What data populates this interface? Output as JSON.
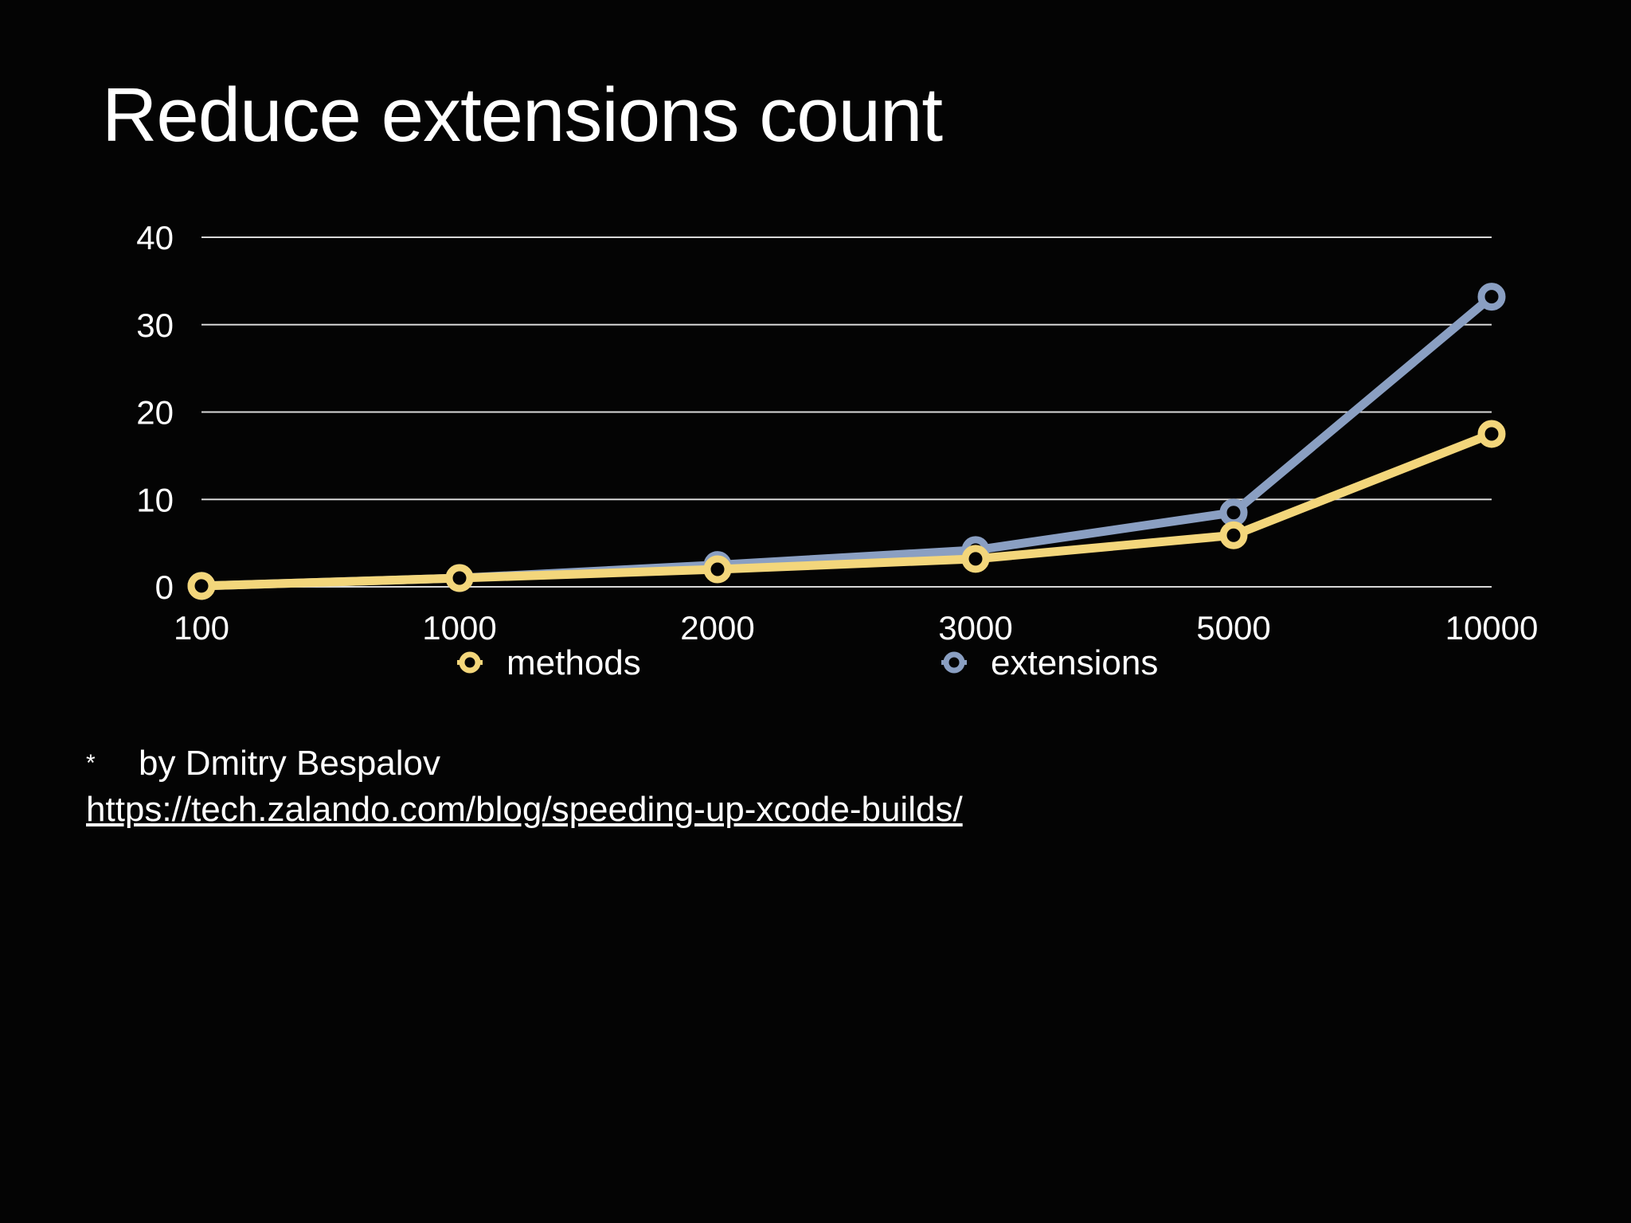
{
  "slide": {
    "title": "Reduce extensions count"
  },
  "chart_data": {
    "type": "line",
    "categories": [
      "100",
      "1000",
      "2000",
      "3000",
      "5000",
      "10000"
    ],
    "series": [
      {
        "name": "methods",
        "values": [
          0.1,
          1.0,
          2.0,
          3.2,
          5.9,
          17.5
        ],
        "color": "#f3d67b"
      },
      {
        "name": "extensions",
        "values": [
          0.1,
          1.0,
          2.5,
          4.2,
          8.5,
          33.2
        ],
        "color": "#8a9fc2"
      }
    ],
    "y_ticks": [
      0,
      10,
      20,
      30,
      40
    ],
    "ylim": [
      0,
      40
    ],
    "grid": true,
    "legend_position": "bottom",
    "title": "",
    "xlabel": "",
    "ylabel": ""
  },
  "footnote": {
    "marker": "*",
    "author": "by Dmitry Bespalov",
    "link_text": "https://tech.zalando.com/blog/speeding-up-xcode-builds/"
  }
}
